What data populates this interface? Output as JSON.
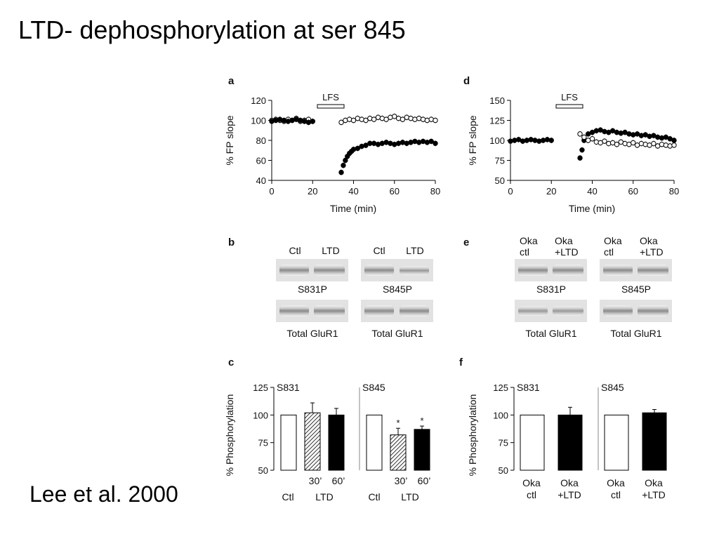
{
  "slide": {
    "title": "LTD- dephosphorylation at ser 845",
    "citation": "Lee et al. 2000"
  },
  "figure": {
    "panel_letters": [
      "a",
      "b",
      "c",
      "d",
      "e",
      "f"
    ],
    "lfs_label": "LFS",
    "fp_ylabel": "% FP slope",
    "time_xlabel": "Time (min)",
    "phos_ylabel": "% Phosphorylation",
    "blots_b": {
      "left_lanes": [
        "Ctl",
        "LTD"
      ],
      "right_lanes": [
        "Ctl",
        "LTD"
      ],
      "left_top_label": "S831P",
      "right_top_label": "S845P",
      "left_bottom_label": "Total GluR1",
      "right_bottom_label": "Total GluR1"
    },
    "blots_e": {
      "lanes_line1": [
        "Oka",
        "Oka",
        "Oka",
        "Oka"
      ],
      "lanes_line2": [
        "ctl",
        "+LTD",
        "ctl",
        "+LTD"
      ],
      "left_top_label": "S831P",
      "right_top_label": "S845P",
      "left_bottom_label": "Total GluR1",
      "right_bottom_label": "Total GluR1"
    },
    "bar_c_xlabels": {
      "line1": [
        "",
        "30’",
        "60’"
      ],
      "ctl": "Ctl",
      "ltd": "LTD"
    },
    "bar_f_xlabels": {
      "line1": [
        "Oka",
        "Oka"
      ],
      "line2": [
        "ctl",
        "+LTD"
      ]
    }
  },
  "chart_data": [
    {
      "panel": "a",
      "type": "scatter",
      "xlabel": "Time (min)",
      "ylabel": "% FP slope",
      "xlim": [
        0,
        80
      ],
      "ylim": [
        40,
        120
      ],
      "xticks": [
        0,
        20,
        40,
        60,
        80
      ],
      "yticks": [
        40,
        60,
        80,
        100,
        120
      ],
      "annotation": "LFS",
      "annotation_span": [
        20,
        34
      ],
      "series": [
        {
          "marker": "open",
          "x": [
            0,
            2,
            4,
            6,
            8,
            10,
            12,
            14,
            16,
            18,
            20,
            34,
            36,
            38,
            40,
            42,
            44,
            46,
            48,
            50,
            52,
            54,
            56,
            58,
            60,
            62,
            64,
            66,
            68,
            70,
            72,
            74,
            76,
            78,
            80
          ],
          "y": [
            100,
            101,
            100,
            99,
            101,
            100,
            102,
            99,
            100,
            101,
            99,
            98,
            100,
            101,
            100,
            102,
            101,
            100,
            102,
            101,
            103,
            102,
            101,
            103,
            104,
            102,
            101,
            103,
            102,
            101,
            102,
            101,
            100,
            101,
            100
          ]
        },
        {
          "marker": "filled",
          "x": [
            0,
            2,
            4,
            6,
            8,
            10,
            12,
            14,
            16,
            18,
            20,
            34,
            35,
            36,
            37,
            38,
            39,
            40,
            42,
            44,
            46,
            48,
            50,
            52,
            54,
            56,
            58,
            60,
            62,
            64,
            66,
            68,
            70,
            72,
            74,
            76,
            78,
            80
          ],
          "y": [
            99,
            100,
            101,
            100,
            99,
            100,
            101,
            100,
            99,
            98,
            99,
            48,
            55,
            60,
            64,
            67,
            69,
            71,
            72,
            74,
            75,
            77,
            77,
            76,
            77,
            78,
            77,
            76,
            77,
            78,
            77,
            78,
            79,
            78,
            79,
            78,
            79,
            77
          ]
        }
      ]
    },
    {
      "panel": "d",
      "type": "scatter",
      "xlabel": "Time (min)",
      "ylabel": "% FP slope",
      "xlim": [
        0,
        80
      ],
      "ylim": [
        50,
        150
      ],
      "xticks": [
        0,
        20,
        40,
        60,
        80
      ],
      "yticks": [
        50,
        75,
        100,
        125,
        150
      ],
      "annotation": "LFS",
      "annotation_span": [
        20,
        34
      ],
      "series": [
        {
          "marker": "filled",
          "x": [
            0,
            2,
            4,
            6,
            8,
            10,
            12,
            14,
            16,
            18,
            20,
            34,
            35,
            36,
            38,
            40,
            42,
            44,
            46,
            48,
            50,
            52,
            54,
            56,
            58,
            60,
            62,
            64,
            66,
            68,
            70,
            72,
            74,
            76,
            78,
            80
          ],
          "y": [
            99,
            100,
            101,
            99,
            100,
            101,
            100,
            99,
            100,
            101,
            100,
            78,
            88,
            100,
            108,
            110,
            112,
            113,
            111,
            110,
            112,
            110,
            109,
            110,
            108,
            107,
            108,
            106,
            107,
            105,
            106,
            104,
            103,
            104,
            102,
            100
          ]
        },
        {
          "marker": "open",
          "x": [
            34,
            36,
            38,
            40,
            42,
            44,
            46,
            48,
            50,
            52,
            54,
            56,
            58,
            60,
            62,
            64,
            66,
            68,
            70,
            72,
            74,
            76,
            78,
            80
          ],
          "y": [
            108,
            104,
            100,
            102,
            98,
            97,
            99,
            96,
            97,
            95,
            98,
            96,
            95,
            97,
            94,
            96,
            95,
            94,
            96,
            93,
            95,
            94,
            93,
            94
          ]
        }
      ]
    },
    {
      "panel": "c",
      "type": "bar",
      "ylabel": "% Phosphorylation",
      "ylim": [
        50,
        125
      ],
      "yticks": [
        50,
        75,
        100,
        125
      ],
      "groups": [
        {
          "name": "S831",
          "values": [
            100,
            102,
            100
          ],
          "errors": [
            0,
            9,
            6
          ],
          "fills": [
            "white",
            "hatched",
            "black"
          ],
          "stars": [
            "",
            "",
            ""
          ]
        },
        {
          "name": "S845",
          "values": [
            100,
            82,
            87
          ],
          "errors": [
            0,
            6,
            3
          ],
          "fills": [
            "white",
            "hatched",
            "black"
          ],
          "stars": [
            "",
            "*",
            "*"
          ]
        }
      ]
    },
    {
      "panel": "f",
      "type": "bar",
      "ylabel": "% Phosphorylation",
      "ylim": [
        50,
        125
      ],
      "yticks": [
        50,
        75,
        100,
        125
      ],
      "groups": [
        {
          "name": "S831",
          "values": [
            100,
            100
          ],
          "errors": [
            0,
            7
          ],
          "fills": [
            "white",
            "black"
          ]
        },
        {
          "name": "S845",
          "values": [
            100,
            102
          ],
          "errors": [
            0,
            3
          ],
          "fills": [
            "white",
            "black"
          ]
        }
      ]
    }
  ]
}
